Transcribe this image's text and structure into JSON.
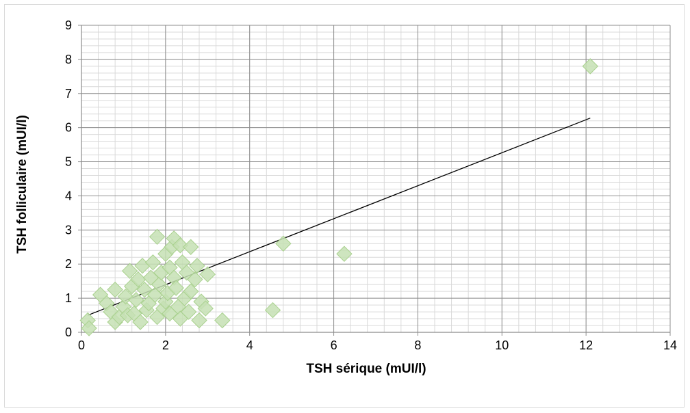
{
  "chart_data": {
    "type": "scatter",
    "title": "",
    "xlabel": "TSH sérique (mUI/l)",
    "ylabel": "TSH folliculaire (mUI/l)",
    "xlim": [
      0,
      14
    ],
    "ylim": [
      0,
      9
    ],
    "x_major_ticks": [
      "0",
      "2",
      "4",
      "6",
      "8",
      "10",
      "12",
      "14"
    ],
    "y_major_ticks": [
      "0",
      "1",
      "2",
      "3",
      "4",
      "5",
      "6",
      "7",
      "8",
      "9"
    ],
    "x_major_step": 2,
    "x_minor_step": 0.4,
    "y_major_step": 1,
    "y_minor_step": 0.2,
    "grid": true,
    "legend": "none",
    "marker": "diamond",
    "marker_color": "#c5e0b4",
    "marker_edge_color": "#a9d18e",
    "trendline_color": "#000000",
    "series": [
      {
        "points": [
          [
            0.15,
            0.35
          ],
          [
            0.18,
            0.12
          ],
          [
            0.45,
            1.1
          ],
          [
            0.6,
            0.85
          ],
          [
            0.7,
            0.6
          ],
          [
            0.8,
            1.25
          ],
          [
            0.8,
            0.3
          ],
          [
            0.9,
            0.45
          ],
          [
            1.0,
            0.75
          ],
          [
            1.05,
            1.05
          ],
          [
            1.1,
            0.5
          ],
          [
            1.15,
            1.8
          ],
          [
            1.2,
            1.35
          ],
          [
            1.25,
            0.55
          ],
          [
            1.3,
            0.95
          ],
          [
            1.35,
            1.55
          ],
          [
            1.4,
            0.3
          ],
          [
            1.45,
            1.95
          ],
          [
            1.5,
            1.25
          ],
          [
            1.55,
            0.65
          ],
          [
            1.6,
            0.85
          ],
          [
            1.65,
            1.6
          ],
          [
            1.7,
            2.05
          ],
          [
            1.75,
            1.1
          ],
          [
            1.8,
            0.45
          ],
          [
            1.8,
            2.8
          ],
          [
            1.85,
            1.4
          ],
          [
            1.9,
            1.75
          ],
          [
            1.95,
            0.7
          ],
          [
            2.0,
            2.3
          ],
          [
            2.0,
            0.9
          ],
          [
            2.05,
            1.15
          ],
          [
            2.1,
            1.9
          ],
          [
            2.1,
            0.55
          ],
          [
            2.15,
            2.5
          ],
          [
            2.2,
            2.75
          ],
          [
            2.2,
            1.6
          ],
          [
            2.25,
            1.3
          ],
          [
            2.3,
            0.75
          ],
          [
            2.35,
            2.55
          ],
          [
            2.35,
            0.4
          ],
          [
            2.4,
            2.05
          ],
          [
            2.45,
            1.0
          ],
          [
            2.5,
            1.75
          ],
          [
            2.55,
            0.6
          ],
          [
            2.6,
            2.5
          ],
          [
            2.6,
            1.2
          ],
          [
            2.7,
            1.55
          ],
          [
            2.75,
            1.95
          ],
          [
            2.8,
            0.35
          ],
          [
            2.85,
            0.9
          ],
          [
            2.95,
            0.7
          ],
          [
            3.0,
            1.7
          ],
          [
            3.35,
            0.35
          ],
          [
            4.55,
            0.65
          ],
          [
            4.8,
            2.6
          ],
          [
            6.25,
            2.3
          ],
          [
            12.1,
            7.8
          ]
        ]
      }
    ],
    "trendline": {
      "type": "linear",
      "x_start": 0.15,
      "y_start": 0.5,
      "x_end": 12.1,
      "y_end": 6.28
    }
  }
}
